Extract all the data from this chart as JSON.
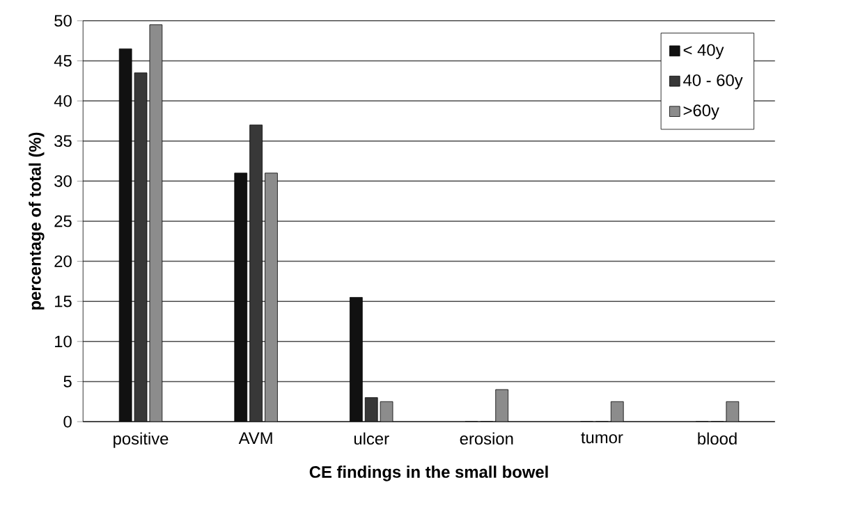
{
  "chart_data": {
    "type": "bar",
    "xlabel": "CE findings in the small bowel",
    "ylabel": "percentage of total (%)",
    "categories": [
      "positive",
      "AVM",
      "ulcer",
      "erosion",
      "tumor",
      "blood"
    ],
    "series": [
      {
        "name": "< 40y",
        "color": "#111111",
        "values": [
          46.5,
          31,
          15.5,
          0,
          0,
          0
        ]
      },
      {
        "name": "40 - 60y",
        "color": "#383838",
        "values": [
          43.5,
          37,
          3,
          0,
          0,
          0
        ]
      },
      {
        "name": ">60y",
        "color": "#8c8c8c",
        "values": [
          49.5,
          31,
          2.5,
          4,
          2.5,
          2.5
        ]
      }
    ],
    "ylim": [
      0,
      50
    ],
    "yticks": [
      0,
      5,
      10,
      15,
      20,
      25,
      30,
      35,
      40,
      45,
      50
    ],
    "grid": "y",
    "legend": "top right"
  }
}
